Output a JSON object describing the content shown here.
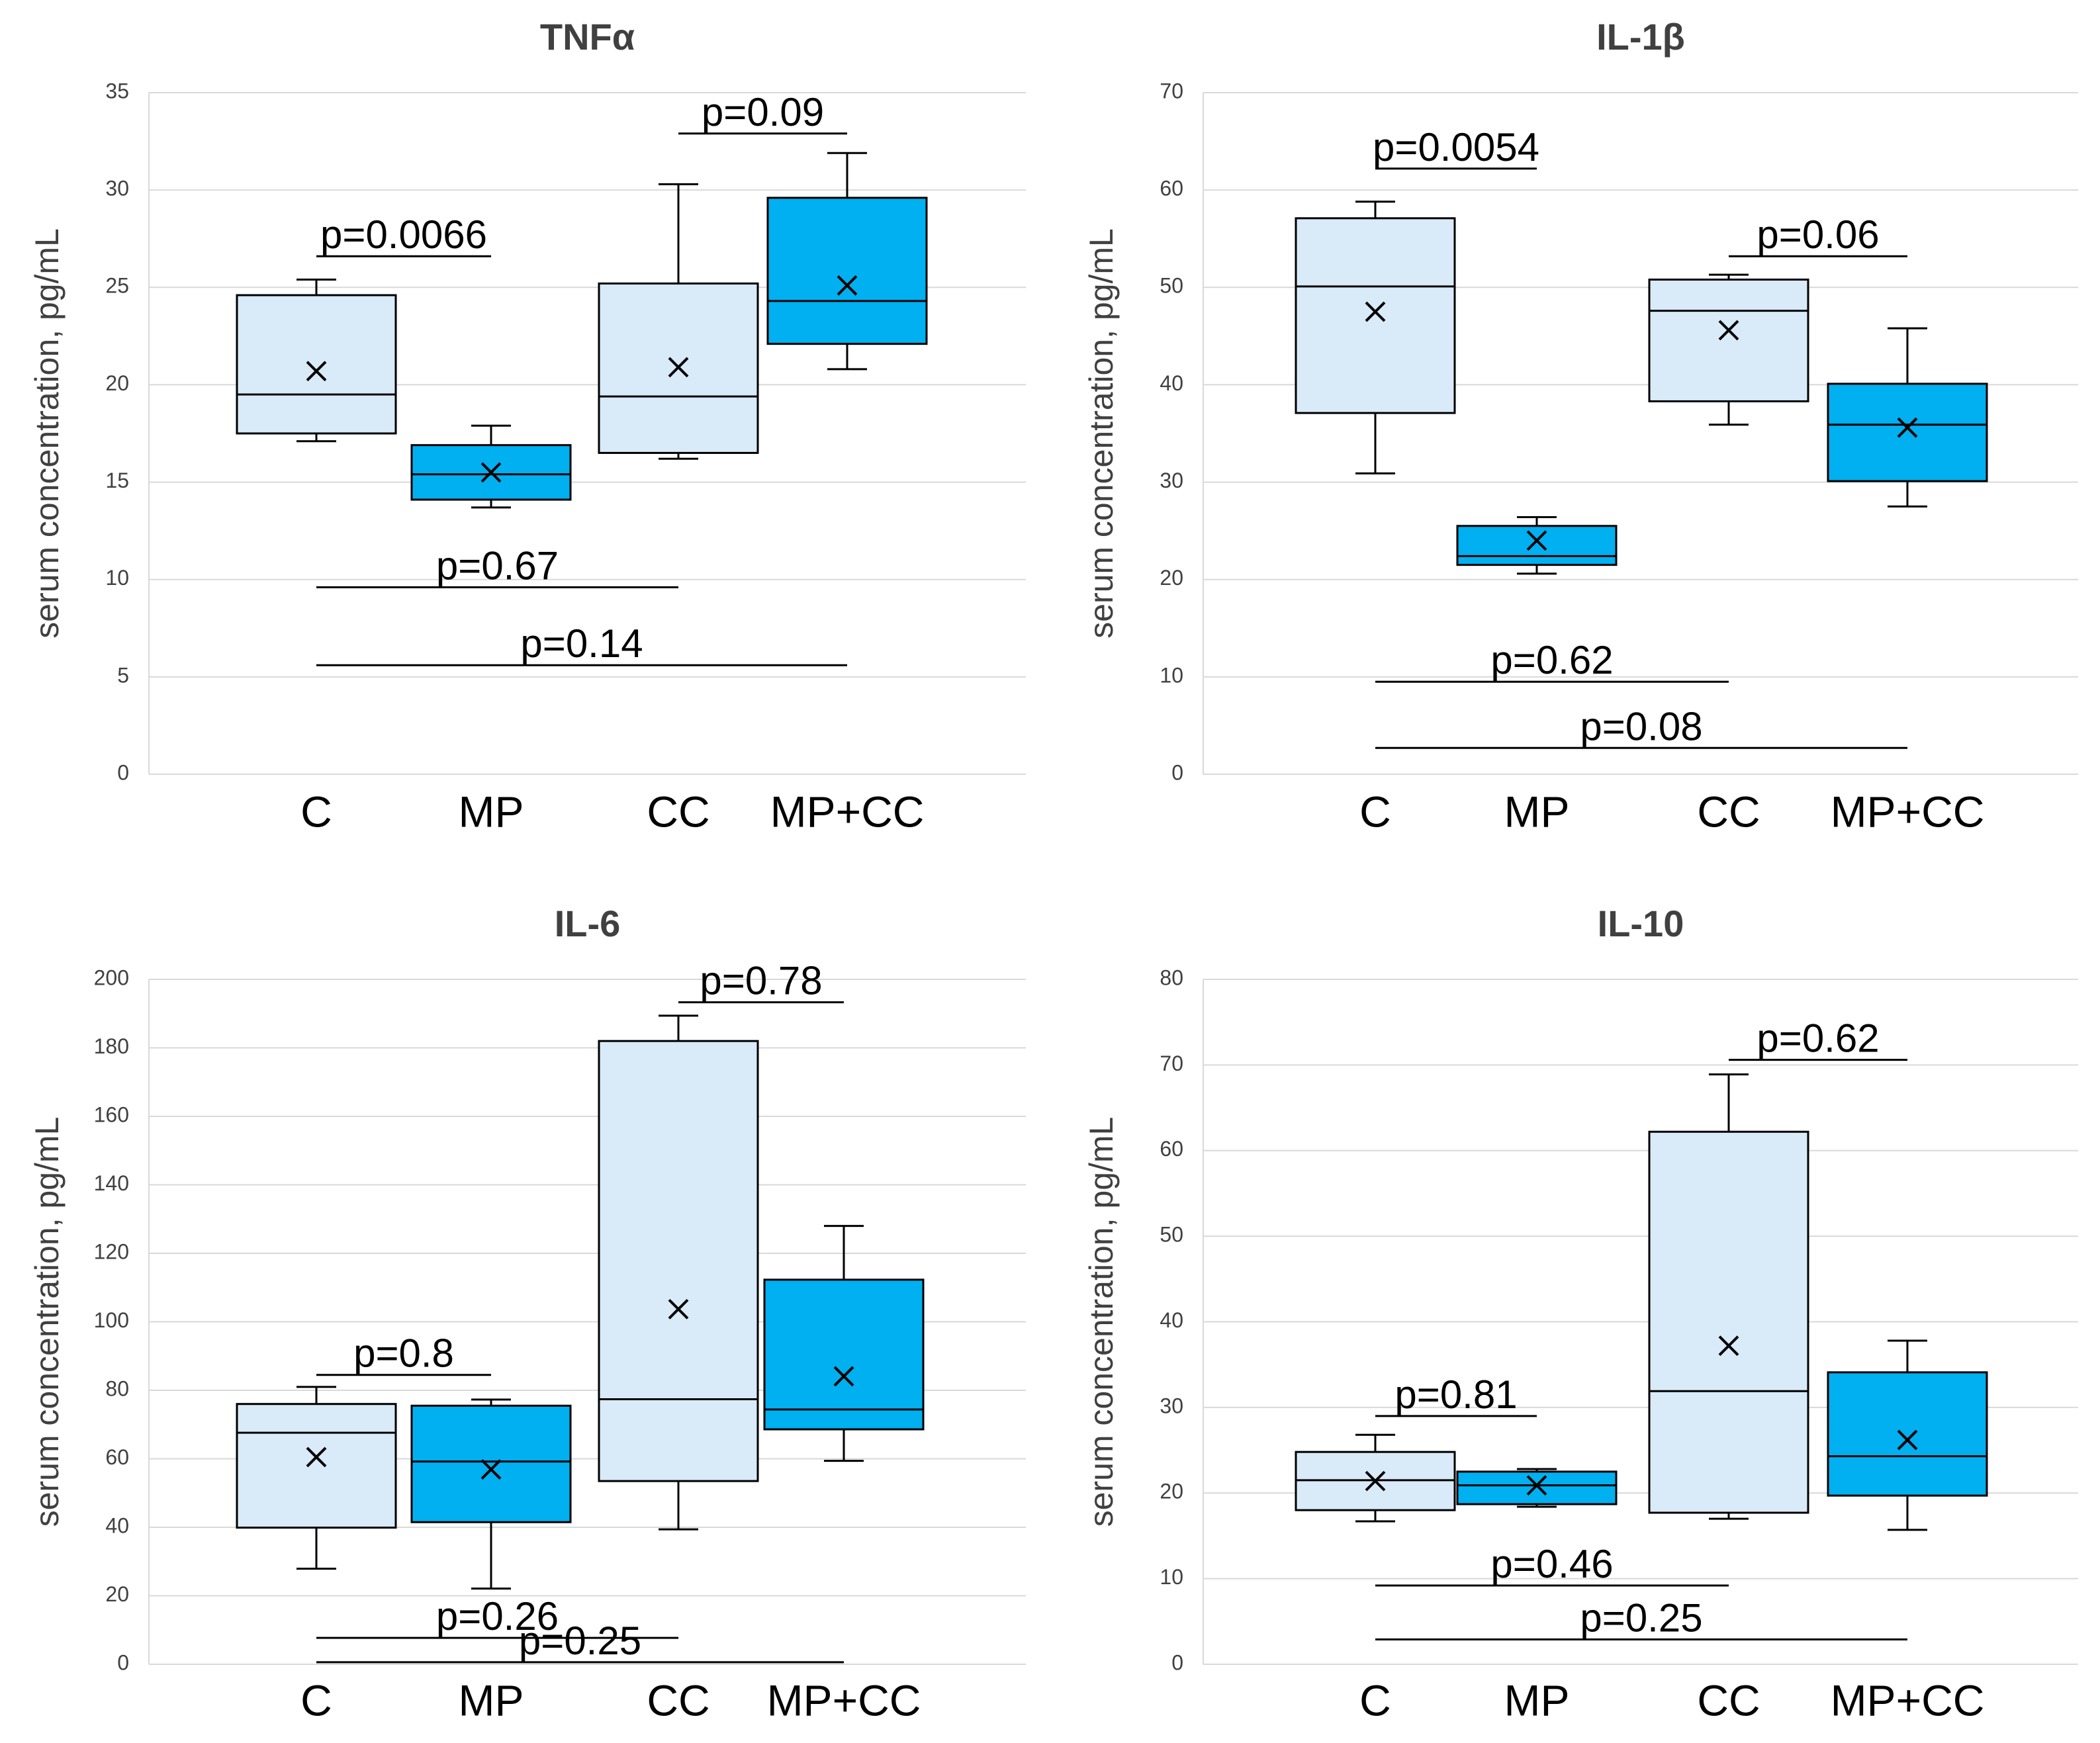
{
  "colors": {
    "light_box": "#d9eaf9",
    "dark_box": "#00b0f0",
    "significant": "#ff0000",
    "normal": "#000000",
    "grid": "#d9d9d9"
  },
  "chart_data": [
    {
      "type": "box",
      "title": "TNFα",
      "ylabel": "serum concentration, pg/mL",
      "ylim": [
        0,
        35
      ],
      "yticks": [
        0,
        5,
        10,
        15,
        20,
        25,
        30,
        35
      ],
      "grid": true,
      "categories": [
        "C",
        "MP",
        "CC",
        "MP+CC"
      ],
      "boxes": [
        {
          "category": "C",
          "style": "light",
          "min": 17.1,
          "q1": 17.5,
          "median": 19.5,
          "q3": 24.6,
          "max": 25.4,
          "mean": 20.7
        },
        {
          "category": "MP",
          "style": "dark",
          "min": 13.7,
          "q1": 14.1,
          "median": 15.4,
          "q3": 16.9,
          "max": 17.9,
          "mean": 15.5
        },
        {
          "category": "CC",
          "style": "light",
          "min": 16.2,
          "q1": 16.5,
          "median": 19.4,
          "q3": 25.2,
          "max": 30.3,
          "mean": 20.9
        },
        {
          "category": "MP+CC",
          "style": "dark",
          "min": 20.8,
          "q1": 22.1,
          "median": 24.3,
          "q3": 29.6,
          "max": 31.9,
          "mean": 25.1
        }
      ],
      "annotations": [
        {
          "text": "p=0.0066",
          "from": 0,
          "to": 1,
          "y": 26.6,
          "significant": true
        },
        {
          "text": "p=0.09",
          "from": 2,
          "to": 3,
          "y": 32.9,
          "significant": false
        },
        {
          "text": "p=0.67",
          "from": 0,
          "to": 2,
          "y": 9.6,
          "significant": false
        },
        {
          "text": "p=0.14",
          "from": 0,
          "to": 3,
          "y": 5.6,
          "significant": false
        }
      ]
    },
    {
      "type": "box",
      "title": "IL-1β",
      "ylabel": "serum concentration, pg/mL",
      "ylim": [
        0,
        70
      ],
      "yticks": [
        0,
        10,
        20,
        30,
        40,
        50,
        60,
        70
      ],
      "grid": true,
      "categories": [
        "C",
        "MP",
        "CC",
        "MP+CC"
      ],
      "boxes": [
        {
          "category": "C",
          "style": "light",
          "min": 30.9,
          "q1": 37.1,
          "median": 50.1,
          "q3": 57.1,
          "max": 58.8,
          "mean": 47.5
        },
        {
          "category": "MP",
          "style": "dark",
          "min": 20.6,
          "q1": 21.5,
          "median": 22.4,
          "q3": 25.5,
          "max": 26.4,
          "mean": 24.0
        },
        {
          "category": "CC",
          "style": "light",
          "min": 35.9,
          "q1": 38.3,
          "median": 47.6,
          "q3": 50.8,
          "max": 51.3,
          "mean": 45.6
        },
        {
          "category": "MP+CC",
          "style": "dark",
          "min": 27.5,
          "q1": 30.1,
          "median": 35.9,
          "q3": 40.1,
          "max": 45.8,
          "mean": 35.6
        }
      ],
      "annotations": [
        {
          "text": "p=0.0054",
          "from": 0,
          "to": 1,
          "y": 62.2,
          "significant": true
        },
        {
          "text": "p=0.06",
          "from": 2,
          "to": 3,
          "y": 53.2,
          "significant": false
        },
        {
          "text": "p=0.62",
          "from": 0,
          "to": 2,
          "y": 9.5,
          "significant": false
        },
        {
          "text": "p=0.08",
          "from": 0,
          "to": 3,
          "y": 2.7,
          "significant": false
        }
      ]
    },
    {
      "type": "box",
      "title": "IL-6",
      "ylabel": "serum concentration, pg/mL",
      "ylim": [
        0,
        200
      ],
      "yticks": [
        0,
        20,
        40,
        60,
        80,
        100,
        120,
        140,
        160,
        180,
        200
      ],
      "grid": true,
      "categories": [
        "C",
        "MP",
        "CC",
        "MP+CC"
      ],
      "boxes": [
        {
          "category": "C",
          "style": "light",
          "min": 27.9,
          "q1": 39.9,
          "median": 67.6,
          "q3": 76.0,
          "max": 81.0,
          "mean": 60.5
        },
        {
          "category": "MP",
          "style": "dark",
          "min": 22.1,
          "q1": 41.5,
          "median": 59.2,
          "q3": 75.5,
          "max": 77.3,
          "mean": 56.9
        },
        {
          "category": "CC",
          "style": "light",
          "min": 39.4,
          "q1": 53.5,
          "median": 77.4,
          "q3": 182.0,
          "max": 189.4,
          "mean": 103.7
        },
        {
          "category": "MP+CC",
          "style": "dark",
          "min": 59.4,
          "q1": 68.6,
          "median": 74.4,
          "q3": 112.3,
          "max": 128.0,
          "mean": 84.1
        }
      ],
      "annotations": [
        {
          "text": "p=0.8",
          "from": 0,
          "to": 1,
          "y": 84.5,
          "significant": false
        },
        {
          "text": "p=0.78",
          "from": 2,
          "to": 3,
          "y": 193.3,
          "significant": false
        },
        {
          "text": "p=0.26",
          "from": 0,
          "to": 2,
          "y": 7.7,
          "significant": false
        },
        {
          "text": "p=0.25",
          "from": 0,
          "to": 3,
          "y": 0.6,
          "significant": false
        }
      ]
    },
    {
      "type": "box",
      "title": "IL-10",
      "ylabel": "serum concentration, pg/mL",
      "ylim": [
        0,
        80
      ],
      "yticks": [
        0,
        10,
        20,
        30,
        40,
        50,
        60,
        70,
        80
      ],
      "grid": true,
      "categories": [
        "C",
        "MP",
        "CC",
        "MP+CC"
      ],
      "boxes": [
        {
          "category": "C",
          "style": "light",
          "min": 16.7,
          "q1": 18.0,
          "median": 21.5,
          "q3": 24.8,
          "max": 26.8,
          "mean": 21.4
        },
        {
          "category": "MP",
          "style": "dark",
          "min": 18.4,
          "q1": 18.7,
          "median": 20.9,
          "q3": 22.5,
          "max": 22.8,
          "mean": 20.9
        },
        {
          "category": "CC",
          "style": "light",
          "min": 17.0,
          "q1": 17.7,
          "median": 31.9,
          "q3": 62.2,
          "max": 68.9,
          "mean": 37.2
        },
        {
          "category": "MP+CC",
          "style": "dark",
          "min": 15.7,
          "q1": 19.7,
          "median": 24.3,
          "q3": 34.1,
          "max": 37.8,
          "mean": 26.2
        }
      ],
      "annotations": [
        {
          "text": "p=0.81",
          "from": 0,
          "to": 1,
          "y": 29.0,
          "significant": false
        },
        {
          "text": "p=0.62",
          "from": 2,
          "to": 3,
          "y": 70.6,
          "significant": false
        },
        {
          "text": "p=0.46",
          "from": 0,
          "to": 2,
          "y": 9.2,
          "significant": false
        },
        {
          "text": "p=0.25",
          "from": 0,
          "to": 3,
          "y": 2.9,
          "significant": false
        }
      ]
    }
  ]
}
